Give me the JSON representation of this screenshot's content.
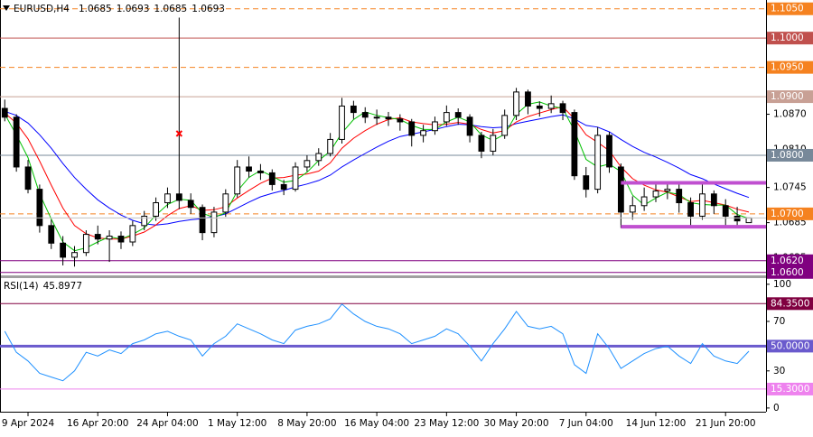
{
  "chart_data": [
    {
      "type": "candlestick",
      "title": "EURUSD,H4",
      "xlim": [
        -0.41,
        65.48
      ],
      "ylim": [
        1.0595,
        1.1065
      ],
      "color": "#000000",
      "open": [
        1.088,
        1.0865,
        1.078,
        1.0742,
        1.068,
        1.065,
        1.0626,
        1.0634,
        1.0665,
        1.0657,
        1.0662,
        1.0652,
        1.068,
        1.0696,
        1.0719,
        1.0734,
        1.0723,
        1.0711,
        1.0668,
        1.0703,
        1.0734,
        1.078,
        1.0773,
        1.077,
        1.075,
        1.0742,
        1.078,
        1.0791,
        1.0803,
        1.0827,
        1.0884,
        1.0873,
        1.0865,
        1.0865,
        1.0862,
        1.0857,
        1.0834,
        1.0842,
        1.0857,
        1.0873,
        1.0865,
        1.0834,
        1.0807,
        1.0834,
        1.0868,
        1.0908,
        1.0884,
        1.088,
        1.0888,
        1.0873,
        1.0765,
        1.0742,
        1.0834,
        1.078,
        1.0703,
        1.0714,
        1.0729,
        1.0739,
        1.0742,
        1.0719,
        1.0696,
        1.0734,
        1.0714,
        1.0696,
        1.0685
      ],
      "high": [
        1.0895,
        1.087,
        1.0792,
        1.075,
        1.069,
        1.0662,
        1.0645,
        1.0672,
        1.068,
        1.0672,
        1.067,
        1.0688,
        1.0705,
        1.0728,
        1.0745,
        1.1035,
        1.0735,
        1.0716,
        1.0712,
        1.0742,
        1.0792,
        1.0798,
        1.0785,
        1.0776,
        1.0758,
        1.0788,
        1.08,
        1.0812,
        1.0838,
        1.0898,
        1.0893,
        1.0882,
        1.0878,
        1.0874,
        1.087,
        1.0862,
        1.0852,
        1.0866,
        1.0885,
        1.088,
        1.087,
        1.084,
        1.0845,
        1.0878,
        1.0915,
        1.0912,
        1.0892,
        1.0902,
        1.0893,
        1.0878,
        1.078,
        1.0848,
        1.084,
        1.0786,
        1.073,
        1.0745,
        1.0752,
        1.0755,
        1.075,
        1.0728,
        1.075,
        1.074,
        1.0725,
        1.0712,
        1.0693
      ],
      "low": [
        1.0858,
        1.0772,
        1.0735,
        1.0668,
        1.064,
        1.0612,
        1.061,
        1.0628,
        1.0648,
        1.0618,
        1.064,
        1.0645,
        1.0672,
        1.0688,
        1.071,
        1.0708,
        1.07,
        1.0655,
        1.066,
        1.0695,
        1.0728,
        1.0762,
        1.0758,
        1.074,
        1.0732,
        1.0738,
        1.0772,
        1.0782,
        1.0798,
        1.082,
        1.0862,
        1.0855,
        1.0852,
        1.085,
        1.0842,
        1.0815,
        1.0822,
        1.0835,
        1.085,
        1.0852,
        1.0822,
        1.0795,
        1.08,
        1.0828,
        1.086,
        1.087,
        1.0866,
        1.0872,
        1.086,
        1.0758,
        1.0728,
        1.0735,
        1.077,
        1.0676,
        1.069,
        1.0705,
        1.072,
        1.0725,
        1.0702,
        1.068,
        1.069,
        1.07,
        1.0678,
        1.068,
        1.0685
      ],
      "close": [
        1.0865,
        1.078,
        1.0742,
        1.068,
        1.065,
        1.0626,
        1.0634,
        1.0665,
        1.0657,
        1.0662,
        1.0652,
        1.068,
        1.0696,
        1.0719,
        1.0734,
        1.0723,
        1.0711,
        1.0668,
        1.0703,
        1.0734,
        1.078,
        1.0773,
        1.077,
        1.075,
        1.0742,
        1.078,
        1.0791,
        1.0803,
        1.0827,
        1.0884,
        1.0873,
        1.0865,
        1.0865,
        1.0862,
        1.0857,
        1.0834,
        1.0842,
        1.0857,
        1.0873,
        1.0865,
        1.0834,
        1.0807,
        1.0834,
        1.0868,
        1.0908,
        1.0884,
        1.088,
        1.0888,
        1.0873,
        1.0765,
        1.0742,
        1.0834,
        1.078,
        1.0703,
        1.0714,
        1.0729,
        1.0739,
        1.0742,
        1.0719,
        1.0696,
        1.0734,
        1.0714,
        1.0696,
        1.0688,
        1.0693
      ],
      "series": [
        {
          "color": "#0000ff",
          "values": [
            1.0875,
            1.0868,
            1.0855,
            1.0835,
            1.0812,
            1.0786,
            1.0762,
            1.0742,
            1.0724,
            1.071,
            1.0698,
            1.0689,
            1.0683,
            1.0681,
            1.0683,
            1.0687,
            1.069,
            1.0692,
            1.0695,
            1.07,
            1.071,
            1.072,
            1.0729,
            1.0735,
            1.074,
            1.0746,
            1.0751,
            1.0757,
            1.0766,
            1.078,
            1.0792,
            1.0803,
            1.0814,
            1.0824,
            1.0832,
            1.0836,
            1.084,
            1.0844,
            1.0849,
            1.0853,
            1.0852,
            1.0849,
            1.0847,
            1.0848,
            1.0854,
            1.0858,
            1.0862,
            1.0866,
            1.0869,
            1.0862,
            1.0851,
            1.0848,
            1.084,
            1.0827,
            1.0815,
            1.0805,
            1.0797,
            1.0788,
            1.0778,
            1.0767,
            1.076,
            1.0751,
            1.0743,
            1.0735,
            1.0728
          ]
        },
        {
          "color": "#ff0000",
          "values": [
            1.0872,
            1.0855,
            1.0828,
            1.079,
            1.0749,
            1.071,
            1.068,
            1.0666,
            1.0659,
            1.0657,
            1.0657,
            1.0662,
            1.0669,
            1.0681,
            1.0697,
            1.0709,
            1.0714,
            1.0706,
            1.0707,
            1.0712,
            1.0727,
            1.074,
            1.0752,
            1.0761,
            1.0762,
            1.0766,
            1.0768,
            1.0773,
            1.0787,
            1.0812,
            1.0829,
            1.0842,
            1.0853,
            1.0861,
            1.0864,
            1.0857,
            1.0854,
            1.0852,
            1.0853,
            1.0856,
            1.0853,
            1.0844,
            1.0838,
            1.0842,
            1.0857,
            1.0866,
            1.0872,
            1.0878,
            1.0883,
            1.0862,
            1.0835,
            1.0822,
            1.0808,
            1.078,
            1.076,
            1.0749,
            1.0741,
            1.0737,
            1.0729,
            1.0721,
            1.0723,
            1.0719,
            1.0715,
            1.0708,
            1.0703
          ]
        },
        {
          "color": "#00c000",
          "values": [
            1.087,
            1.0835,
            1.0796,
            1.0734,
            1.0691,
            1.0652,
            1.0637,
            1.0642,
            1.0652,
            1.0661,
            1.0657,
            1.0665,
            1.0676,
            1.0698,
            1.0716,
            1.0725,
            1.0723,
            1.0701,
            1.0694,
            1.0702,
            1.0739,
            1.0762,
            1.0774,
            1.0764,
            1.0754,
            1.0757,
            1.0771,
            1.0791,
            1.0807,
            1.0838,
            1.0861,
            1.0874,
            1.0868,
            1.0864,
            1.0861,
            1.0851,
            1.0844,
            1.0844,
            1.0857,
            1.0865,
            1.0857,
            1.0835,
            1.0825,
            1.0836,
            1.087,
            1.0887,
            1.0891,
            1.0884,
            1.088,
            1.0842,
            1.0793,
            1.078,
            1.0785,
            1.0772,
            1.0732,
            1.0715,
            1.0727,
            1.0737,
            1.0733,
            1.0719,
            1.0716,
            1.0715,
            1.0715,
            1.0699,
            1.0692
          ]
        }
      ],
      "yticks": [
        {
          "value": 1.087,
          "label": "1.0870"
        },
        {
          "value": 1.081,
          "label": "1.0810"
        },
        {
          "value": 1.0745,
          "label": "1.0745"
        },
        {
          "value": 1.0685,
          "label": "1.0685"
        },
        {
          "value": 1.0625,
          "label": "1.0625"
        }
      ],
      "levels": [
        {
          "value": 1.105,
          "label": "1.1050",
          "color": "#f58220",
          "style": "dashed"
        },
        {
          "value": 1.1,
          "label": "1.1000",
          "color": "#c0504d",
          "style": "solid"
        },
        {
          "value": 1.095,
          "label": "1.0950",
          "color": "#f58220",
          "style": "dashed"
        },
        {
          "value": 1.09,
          "label": "1.0900",
          "color": "#c8a095",
          "style": "solid"
        },
        {
          "value": 1.08,
          "label": "1.0800",
          "color": "#778899",
          "style": "solid"
        },
        {
          "value": 1.07,
          "label": "1.0700",
          "color": "#f58220",
          "style": "dashed"
        },
        {
          "value": 1.062,
          "label": "1.0620",
          "color": "#800080",
          "style": "solid"
        },
        {
          "value": 1.06,
          "label": "1.0600",
          "color": "#800080",
          "style": "solid"
        }
      ],
      "channel": {
        "x": 53,
        "values": [
          1.0753,
          1.0678
        ],
        "color": "#c050d0"
      },
      "marker": {
        "x": 15,
        "y": 1.0837,
        "color": "#ff0000"
      }
    },
    {
      "type": "line",
      "title": "RSI(14)",
      "xlim": [
        -0.41,
        65.48
      ],
      "ylim": [
        -3,
        105
      ],
      "series": [
        {
          "color": "#1e90ff",
          "values": [
            62,
            45,
            38,
            28,
            25,
            22,
            30,
            45,
            42,
            47,
            44,
            52,
            55,
            60,
            62,
            58,
            55,
            42,
            52,
            58,
            68,
            64,
            60,
            55,
            52,
            63,
            66,
            68,
            72,
            84,
            76,
            70,
            66,
            64,
            60,
            52,
            55,
            58,
            64,
            60,
            50,
            38,
            52,
            64,
            78,
            66,
            64,
            66,
            60,
            35,
            28,
            60,
            48,
            32,
            38,
            44,
            48,
            50,
            42,
            36,
            52,
            42,
            38,
            36,
            45.8977
          ]
        }
      ],
      "yticks": [
        100,
        70,
        30,
        0
      ],
      "levels": [
        {
          "value": 84.35,
          "label": "84.3500",
          "color": "#800040",
          "width": 1
        },
        {
          "value": 50,
          "label": "50.0000",
          "color": "#6a5acd",
          "width": 3
        },
        {
          "value": 15.3,
          "label": "15.3000",
          "color": "#ee82ee",
          "width": 1
        }
      ],
      "xticks": [
        {
          "value": 2,
          "label": "9 Apr 2024"
        },
        {
          "value": 8,
          "label": "16 Apr 20:00"
        },
        {
          "value": 14,
          "label": "24 Apr 04:00"
        },
        {
          "value": 20,
          "label": "1 May 12:00"
        },
        {
          "value": 26,
          "label": "8 May 20:00"
        },
        {
          "value": 32,
          "label": "16 May 04:00"
        },
        {
          "value": 38,
          "label": "23 May 12:00"
        },
        {
          "value": 44,
          "label": "30 May 20:00"
        },
        {
          "value": 50,
          "label": "7 Jun 04:00"
        },
        {
          "value": 56,
          "label": "14 Jun 12:00"
        },
        {
          "value": 62,
          "label": "21 Jun 20:00"
        }
      ]
    }
  ]
}
